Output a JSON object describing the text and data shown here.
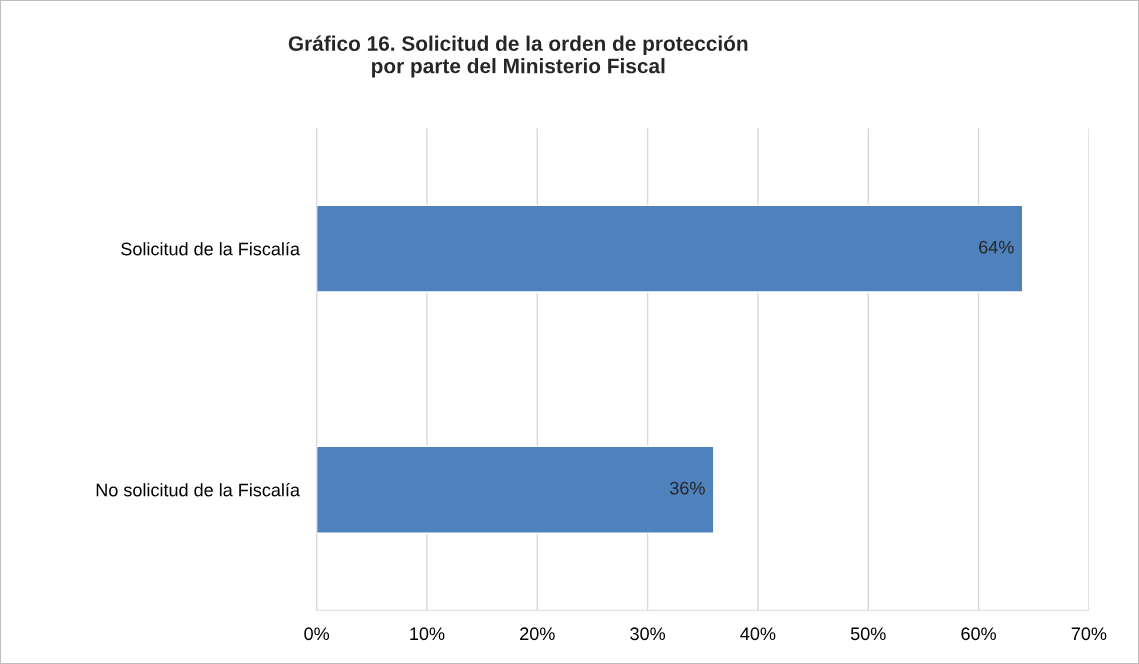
{
  "chart_data": {
    "type": "bar",
    "orientation": "horizontal",
    "title": "Gráfico 16. Solicitud de la orden de protección\npor parte del Ministerio Fiscal",
    "categories": [
      "Solicitud de la Fiscalía",
      "No solicitud de la Fiscalía"
    ],
    "values": [
      64,
      36
    ],
    "value_labels": [
      "64%",
      "36%"
    ],
    "color": "#4f81bd",
    "xlim": [
      0,
      70
    ],
    "xticks": [
      {
        "value": 0,
        "label": "0%"
      },
      {
        "value": 10,
        "label": "10%"
      },
      {
        "value": 20,
        "label": "20%"
      },
      {
        "value": 30,
        "label": "30%"
      },
      {
        "value": 40,
        "label": "40%"
      },
      {
        "value": 50,
        "label": "50%"
      },
      {
        "value": 60,
        "label": "60%"
      },
      {
        "value": 70,
        "label": "70%"
      }
    ],
    "grid": "x",
    "legend": false
  }
}
